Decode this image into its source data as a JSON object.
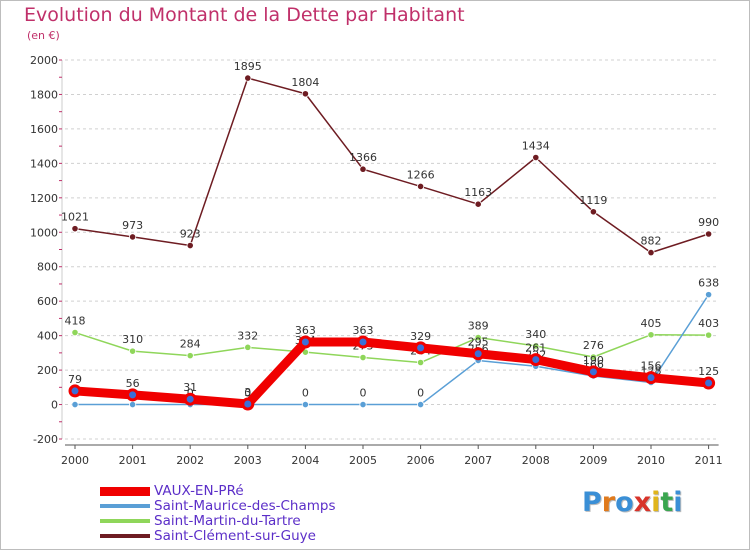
{
  "title": "Evolution du Montant de la Dette par Habitant",
  "unit": "(en €)",
  "logo": {
    "letters": [
      "P",
      "r",
      "o",
      "x",
      "i",
      "t",
      "i"
    ],
    "colors": [
      "#3a8fd6",
      "#e07a1c",
      "#3a8fd6",
      "#d8332a",
      "#e0b51c",
      "#3aa64f",
      "#3a8fd6"
    ]
  },
  "chart_data": {
    "type": "line",
    "x": [
      "2000",
      "2001",
      "2002",
      "2003",
      "2004",
      "2005",
      "2006",
      "2007",
      "2008",
      "2009",
      "2010",
      "2011"
    ],
    "yticks": [
      "-200",
      "0",
      "200",
      "400",
      "600",
      "800",
      "1000",
      "1200",
      "1400",
      "1600",
      "1800",
      "2000"
    ],
    "ylim": [
      -200,
      2000
    ],
    "grid": "horizontal dashed",
    "legend": "bottom-left",
    "series": [
      {
        "name": "Saint-Clément-sur-Guye",
        "color": "#6e1c22",
        "values": [
          1021,
          973,
          923,
          1895,
          1804,
          1366,
          1266,
          1163,
          1434,
          1119,
          882,
          990
        ],
        "labels": [
          "1021",
          "973",
          "923",
          "1895",
          "1804",
          "1366",
          "1266",
          "1163",
          "1434",
          "1119",
          "882",
          "990"
        ]
      },
      {
        "name": "Saint-Martin-du-Tartre",
        "color": "#8fd65a",
        "values": [
          418,
          310,
          284,
          332,
          304,
          273,
          244,
          389,
          340,
          276,
          405,
          403
        ],
        "labels": [
          "418",
          "310",
          "284",
          "332",
          "304",
          "273",
          "244",
          "389",
          "340",
          "276",
          "405",
          "403"
        ]
      },
      {
        "name": "Saint-Maurice-des-Champs",
        "color": "#5a9fd6",
        "values": [
          0,
          0,
          0,
          0,
          0,
          0,
          0,
          256,
          222,
          166,
          128,
          638
        ],
        "labels": [
          "0",
          "0",
          "0",
          "0",
          "0",
          "0",
          "0",
          "256",
          "222",
          "166",
          "128",
          "638"
        ]
      },
      {
        "name": "VAUX-EN-PRé",
        "color": "#f00000",
        "values": [
          79,
          56,
          31,
          3,
          363,
          363,
          329,
          295,
          261,
          190,
          156,
          125
        ],
        "labels": [
          "79",
          "56",
          "31",
          "3",
          "363",
          "363",
          "329",
          "295",
          "261",
          "190",
          "156",
          "125"
        ]
      }
    ],
    "legend_order": [
      "VAUX-EN-PRé",
      "Saint-Maurice-des-Champs",
      "Saint-Martin-du-Tartre",
      "Saint-Clément-sur-Guye"
    ]
  }
}
